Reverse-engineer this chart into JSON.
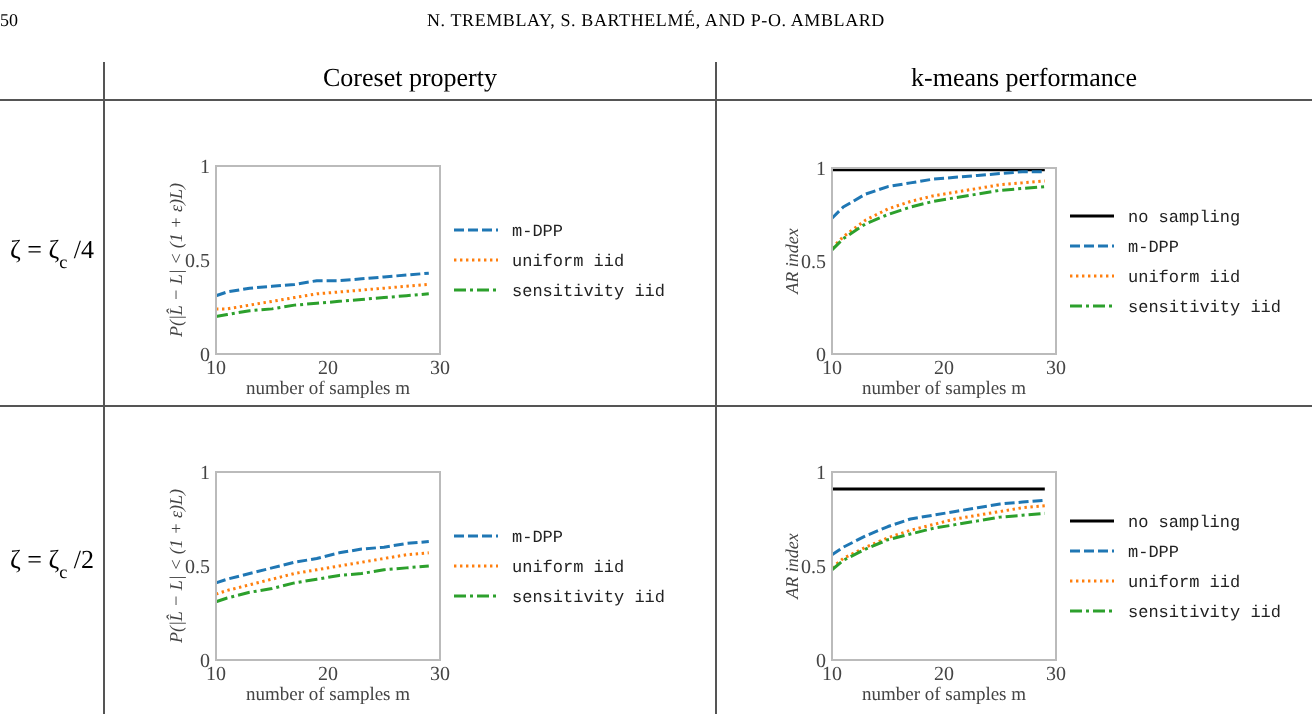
{
  "chart_data": [
    {
      "type": "line",
      "title": "Coreset property",
      "annotations": [
        "50",
        "N. TREMBLAY, S. BARTHELMÉ, AND P-O. AMBLARD",
        "ζ = ζ$_{c}$/4"
      ],
      "xlabel": "number of samples m",
      "ylabel": "P(|L̂ − L| < (1 + ε)L)",
      "x": [
        10,
        11,
        13,
        15,
        17,
        19,
        21,
        23,
        25,
        27,
        29
      ],
      "xlim": [
        10,
        30
      ],
      "xticks": [
        10,
        20,
        30
      ],
      "ylim": [
        0,
        1
      ],
      "yticks": [
        0,
        0.5,
        1
      ],
      "legend": "right",
      "grid": false,
      "series": [
        {
          "name": "m-DPP",
          "color": "#1f77b4",
          "line_style": "dashed",
          "values": [
            0.31,
            0.33,
            0.35,
            0.36,
            0.37,
            0.39,
            0.39,
            0.4,
            0.41,
            0.42,
            0.43
          ]
        },
        {
          "name": "uniform iid",
          "color": "#ff7f0e",
          "line_style": "dotted",
          "values": [
            0.24,
            0.24,
            0.26,
            0.28,
            0.3,
            0.32,
            0.33,
            0.34,
            0.35,
            0.36,
            0.37
          ]
        },
        {
          "name": "sensitivity iid",
          "color": "#2ca02c",
          "line_style": "dashdot",
          "values": [
            0.2,
            0.21,
            0.23,
            0.24,
            0.26,
            0.27,
            0.28,
            0.29,
            0.3,
            0.31,
            0.32
          ]
        }
      ]
    },
    {
      "type": "line",
      "title": "k-means performance",
      "xlabel": "number of samples m",
      "ylabel": "AR index",
      "x": [
        10,
        11,
        13,
        15,
        17,
        19,
        21,
        23,
        25,
        27,
        29
      ],
      "xlim": [
        10,
        30
      ],
      "xticks": [
        10,
        20,
        30
      ],
      "ylim": [
        0,
        1
      ],
      "yticks": [
        0,
        0.5,
        1
      ],
      "legend": "right",
      "grid": false,
      "series": [
        {
          "name": "no sampling",
          "color": "#000000",
          "line_style": "solid",
          "values": [
            0.99,
            0.99,
            0.99,
            0.99,
            0.99,
            0.99,
            0.99,
            0.99,
            0.99,
            0.99,
            0.99
          ]
        },
        {
          "name": "m-DPP",
          "color": "#1f77b4",
          "line_style": "dashed",
          "values": [
            0.73,
            0.79,
            0.86,
            0.9,
            0.92,
            0.94,
            0.95,
            0.96,
            0.97,
            0.98,
            0.98
          ]
        },
        {
          "name": "uniform iid",
          "color": "#ff7f0e",
          "line_style": "dotted",
          "values": [
            0.57,
            0.63,
            0.72,
            0.78,
            0.82,
            0.85,
            0.87,
            0.89,
            0.91,
            0.92,
            0.93
          ]
        },
        {
          "name": "sensitivity iid",
          "color": "#2ca02c",
          "line_style": "dashdot",
          "values": [
            0.56,
            0.62,
            0.7,
            0.75,
            0.79,
            0.82,
            0.84,
            0.86,
            0.88,
            0.89,
            0.9
          ]
        }
      ]
    },
    {
      "type": "line",
      "annotations": [
        "ζ = ζ$_{c}$/2"
      ],
      "xlabel": "number of samples m",
      "ylabel": "P(|L̂ − L| < (1 + ε)L)",
      "x": [
        10,
        11,
        13,
        15,
        17,
        19,
        21,
        23,
        25,
        27,
        29
      ],
      "xlim": [
        10,
        30
      ],
      "xticks": [
        10,
        20,
        30
      ],
      "ylim": [
        0,
        1
      ],
      "yticks": [
        0,
        0.5,
        1
      ],
      "legend": "right",
      "grid": false,
      "series": [
        {
          "name": "m-DPP",
          "color": "#1f77b4",
          "line_style": "dashed",
          "values": [
            0.41,
            0.43,
            0.46,
            0.49,
            0.52,
            0.54,
            0.57,
            0.59,
            0.6,
            0.62,
            0.63
          ]
        },
        {
          "name": "uniform iid",
          "color": "#ff7f0e",
          "line_style": "dotted",
          "values": [
            0.35,
            0.37,
            0.4,
            0.43,
            0.46,
            0.48,
            0.5,
            0.52,
            0.54,
            0.56,
            0.57
          ]
        },
        {
          "name": "sensitivity iid",
          "color": "#2ca02c",
          "line_style": "dashdot",
          "values": [
            0.31,
            0.33,
            0.36,
            0.38,
            0.41,
            0.43,
            0.45,
            0.46,
            0.48,
            0.49,
            0.5
          ]
        }
      ]
    },
    {
      "type": "line",
      "xlabel": "number of samples m",
      "ylabel": "AR index",
      "x": [
        10,
        11,
        13,
        15,
        17,
        19,
        21,
        23,
        25,
        27,
        29
      ],
      "xlim": [
        10,
        30
      ],
      "xticks": [
        10,
        20,
        30
      ],
      "ylim": [
        0,
        1
      ],
      "yticks": [
        0,
        0.5,
        1
      ],
      "legend": "right",
      "grid": false,
      "series": [
        {
          "name": "no sampling",
          "color": "#000000",
          "line_style": "solid",
          "values": [
            0.91,
            0.91,
            0.91,
            0.91,
            0.91,
            0.91,
            0.91,
            0.91,
            0.91,
            0.91,
            0.91
          ]
        },
        {
          "name": "m-DPP",
          "color": "#1f77b4",
          "line_style": "dashed",
          "values": [
            0.56,
            0.6,
            0.66,
            0.71,
            0.75,
            0.77,
            0.79,
            0.81,
            0.83,
            0.84,
            0.85
          ]
        },
        {
          "name": "uniform iid",
          "color": "#ff7f0e",
          "line_style": "dotted",
          "values": [
            0.49,
            0.54,
            0.6,
            0.65,
            0.69,
            0.72,
            0.75,
            0.77,
            0.79,
            0.81,
            0.82
          ]
        },
        {
          "name": "sensitivity iid",
          "color": "#2ca02c",
          "line_style": "dashdot",
          "values": [
            0.48,
            0.53,
            0.59,
            0.64,
            0.67,
            0.7,
            0.72,
            0.74,
            0.76,
            0.77,
            0.78
          ]
        }
      ]
    }
  ]
}
